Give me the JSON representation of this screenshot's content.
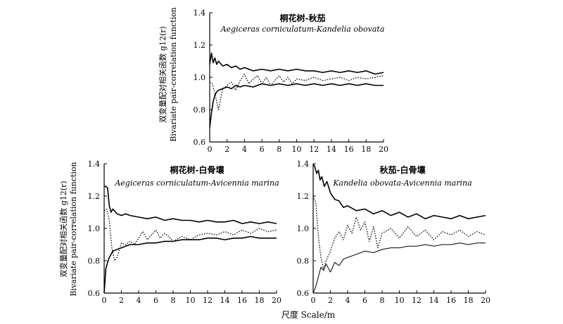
{
  "figure": {
    "xlabel": "尺度 Scale/m"
  },
  "chart_data": [
    {
      "type": "line",
      "title": "桐花树-秋茄",
      "subtitle": "Aegiceras corniculatum-Kandelia obovata",
      "ylabel_cn": "双变量配对相关函数 g12(r)",
      "ylabel_en": "Bivariate pair-correlation function",
      "xlim": [
        0,
        20
      ],
      "ylim": [
        0.6,
        1.4
      ],
      "xticks": [
        0,
        2,
        4,
        6,
        8,
        10,
        12,
        14,
        16,
        18,
        20
      ],
      "yticks": [
        0.6,
        0.8,
        1.0,
        1.2,
        1.4
      ],
      "ytick_labels": [
        "0.6",
        "0.8",
        "1.0",
        "1.2",
        "1.4"
      ],
      "series": [
        {
          "style": "solid",
          "x": [
            0,
            0.2,
            0.4,
            0.6,
            0.8,
            1,
            1.5,
            2,
            2.5,
            3,
            3.5,
            4,
            5,
            6,
            7,
            8,
            9,
            10,
            11,
            12,
            13,
            14,
            15,
            16,
            17,
            18,
            19,
            20
          ],
          "y": [
            1.08,
            1.15,
            1.09,
            1.12,
            1.08,
            1.1,
            1.07,
            1.08,
            1.06,
            1.07,
            1.05,
            1.06,
            1.04,
            1.05,
            1.04,
            1.05,
            1.04,
            1.05,
            1.04,
            1.04,
            1.03,
            1.04,
            1.03,
            1.04,
            1.03,
            1.04,
            1.02,
            1.03
          ]
        },
        {
          "style": "dotted",
          "x": [
            0,
            0.3,
            0.6,
            1,
            1.5,
            2,
            2.5,
            3,
            3.5,
            4,
            4.5,
            5,
            5.5,
            6,
            6.5,
            7,
            7.5,
            8,
            8.5,
            9,
            9.5,
            10,
            11,
            12,
            13,
            14,
            15,
            16,
            17,
            18,
            19,
            20
          ],
          "y": [
            0.97,
            0.96,
            0.9,
            0.8,
            0.93,
            0.95,
            0.97,
            0.92,
            0.98,
            1.02,
            0.96,
            0.99,
            1.01,
            0.96,
            1.0,
            0.95,
            0.98,
            1.01,
            0.97,
            1.0,
            0.96,
            0.99,
            0.98,
            1.0,
            0.98,
            0.99,
            1.0,
            0.98,
            1.0,
            0.99,
            1.0,
            1.01
          ]
        },
        {
          "style": "solid",
          "x": [
            0,
            0.2,
            0.4,
            0.6,
            0.8,
            1,
            1.5,
            2,
            2.5,
            3,
            3.5,
            4,
            5,
            6,
            7,
            8,
            9,
            10,
            11,
            12,
            13,
            14,
            15,
            16,
            17,
            18,
            19,
            20
          ],
          "y": [
            0.69,
            0.78,
            0.85,
            0.89,
            0.91,
            0.92,
            0.93,
            0.94,
            0.93,
            0.95,
            0.94,
            0.95,
            0.94,
            0.96,
            0.95,
            0.96,
            0.95,
            0.96,
            0.95,
            0.96,
            0.95,
            0.96,
            0.95,
            0.96,
            0.95,
            0.96,
            0.95,
            0.95
          ]
        }
      ]
    },
    {
      "type": "line",
      "title": "桐花树-白骨壤",
      "subtitle": "Aegiceras corniculatum-Avicennia marina",
      "ylabel_cn": "双变量配对相关函数 g12(r)",
      "ylabel_en": "Bivariate pair-correlation function",
      "xlim": [
        0,
        20
      ],
      "ylim": [
        0.6,
        1.4
      ],
      "xticks": [
        0,
        2,
        4,
        6,
        8,
        10,
        12,
        14,
        16,
        18,
        20
      ],
      "yticks": [
        0.6,
        0.8,
        1.0,
        1.2,
        1.4
      ],
      "ytick_labels": [
        "0.6",
        "0.8",
        "1.0",
        "1.2",
        "1.4"
      ],
      "series": [
        {
          "style": "solid",
          "x": [
            0,
            0.2,
            0.4,
            0.6,
            0.8,
            1,
            1.5,
            2,
            2.5,
            3,
            4,
            5,
            6,
            7,
            8,
            9,
            10,
            11,
            12,
            13,
            14,
            15,
            16,
            17,
            18,
            19,
            20
          ],
          "y": [
            1.26,
            1.26,
            1.25,
            1.14,
            1.1,
            1.12,
            1.09,
            1.08,
            1.09,
            1.08,
            1.07,
            1.06,
            1.07,
            1.05,
            1.06,
            1.05,
            1.05,
            1.04,
            1.05,
            1.04,
            1.04,
            1.05,
            1.03,
            1.04,
            1.03,
            1.04,
            1.03
          ]
        },
        {
          "style": "dotted",
          "x": [
            0,
            0.3,
            0.6,
            0.9,
            1.2,
            1.5,
            2,
            2.5,
            3,
            3.5,
            4,
            4.5,
            5,
            5.5,
            6,
            6.5,
            7,
            7.5,
            8,
            9,
            10,
            11,
            12,
            13,
            14,
            15,
            16,
            17,
            18,
            19,
            20
          ],
          "y": [
            1.11,
            1.12,
            1.05,
            0.88,
            0.8,
            0.82,
            0.91,
            0.9,
            0.92,
            0.9,
            0.94,
            0.98,
            0.93,
            0.96,
            0.99,
            0.94,
            0.97,
            0.95,
            0.92,
            0.95,
            0.93,
            0.96,
            0.97,
            0.96,
            0.98,
            0.96,
            0.99,
            0.97,
            1.0,
            0.98,
            0.99
          ]
        },
        {
          "style": "solid",
          "x": [
            0,
            0.2,
            0.4,
            0.6,
            0.8,
            1,
            1.5,
            2,
            2.5,
            3,
            4,
            5,
            6,
            7,
            8,
            9,
            10,
            11,
            12,
            13,
            14,
            15,
            16,
            17,
            18,
            19,
            20
          ],
          "y": [
            0.6,
            0.75,
            0.79,
            0.82,
            0.84,
            0.86,
            0.87,
            0.88,
            0.89,
            0.9,
            0.9,
            0.91,
            0.91,
            0.92,
            0.92,
            0.93,
            0.93,
            0.93,
            0.94,
            0.94,
            0.93,
            0.94,
            0.94,
            0.95,
            0.94,
            0.94,
            0.94
          ]
        }
      ]
    },
    {
      "type": "line",
      "title": "秋茄-白骨壤",
      "subtitle": "Kandelia obovata-Avicennia marina",
      "ylabel_cn": "",
      "ylabel_en": "",
      "xlim": [
        0,
        20
      ],
      "ylim": [
        0.6,
        1.4
      ],
      "xticks": [
        0,
        2,
        4,
        6,
        8,
        10,
        12,
        14,
        16,
        18,
        20
      ],
      "yticks": [
        0.6,
        0.8,
        1.0,
        1.2,
        1.4
      ],
      "ytick_labels": [
        "0.6",
        "0.8",
        "1.0",
        "1.2",
        "1.4"
      ],
      "series": [
        {
          "style": "solid",
          "x": [
            0,
            0.2,
            0.4,
            0.6,
            0.8,
            1,
            1.3,
            1.6,
            2,
            2.5,
            3,
            3.5,
            4,
            5,
            6,
            7,
            8,
            9,
            10,
            11,
            12,
            13,
            14,
            15,
            16,
            17,
            18,
            19,
            20
          ],
          "y": [
            1.4,
            1.38,
            1.34,
            1.36,
            1.3,
            1.32,
            1.26,
            1.29,
            1.22,
            1.18,
            1.17,
            1.13,
            1.14,
            1.11,
            1.12,
            1.09,
            1.11,
            1.08,
            1.1,
            1.07,
            1.09,
            1.06,
            1.08,
            1.07,
            1.06,
            1.08,
            1.06,
            1.07,
            1.08
          ]
        },
        {
          "style": "dotted",
          "x": [
            0,
            0.3,
            0.6,
            0.9,
            1.2,
            1.5,
            2,
            2.5,
            3,
            3.5,
            4,
            4.5,
            5,
            5.5,
            6,
            6.5,
            7,
            7.5,
            8,
            9,
            10,
            11,
            12,
            13,
            14,
            15,
            16,
            17,
            18,
            19,
            20
          ],
          "y": [
            1.2,
            1.16,
            0.95,
            0.82,
            0.75,
            0.8,
            0.86,
            0.94,
            0.98,
            0.93,
            1.02,
            0.97,
            1.07,
            0.99,
            1.04,
            0.92,
            1.01,
            0.88,
            0.97,
            1.0,
            0.94,
            1.01,
            0.95,
            0.99,
            0.93,
            0.98,
            0.96,
            0.99,
            0.95,
            0.98,
            0.96
          ]
        },
        {
          "style": "solid-thin",
          "x": [
            0,
            0.3,
            0.6,
            0.9,
            1.2,
            1.5,
            2,
            2.5,
            3,
            3.5,
            4,
            5,
            6,
            7,
            8,
            9,
            10,
            11,
            12,
            13,
            14,
            15,
            16,
            17,
            18,
            19,
            20
          ],
          "y": [
            0.6,
            0.64,
            0.7,
            0.76,
            0.74,
            0.78,
            0.73,
            0.79,
            0.77,
            0.81,
            0.82,
            0.84,
            0.86,
            0.85,
            0.87,
            0.88,
            0.88,
            0.89,
            0.89,
            0.9,
            0.89,
            0.9,
            0.9,
            0.91,
            0.9,
            0.91,
            0.91
          ]
        }
      ]
    }
  ]
}
